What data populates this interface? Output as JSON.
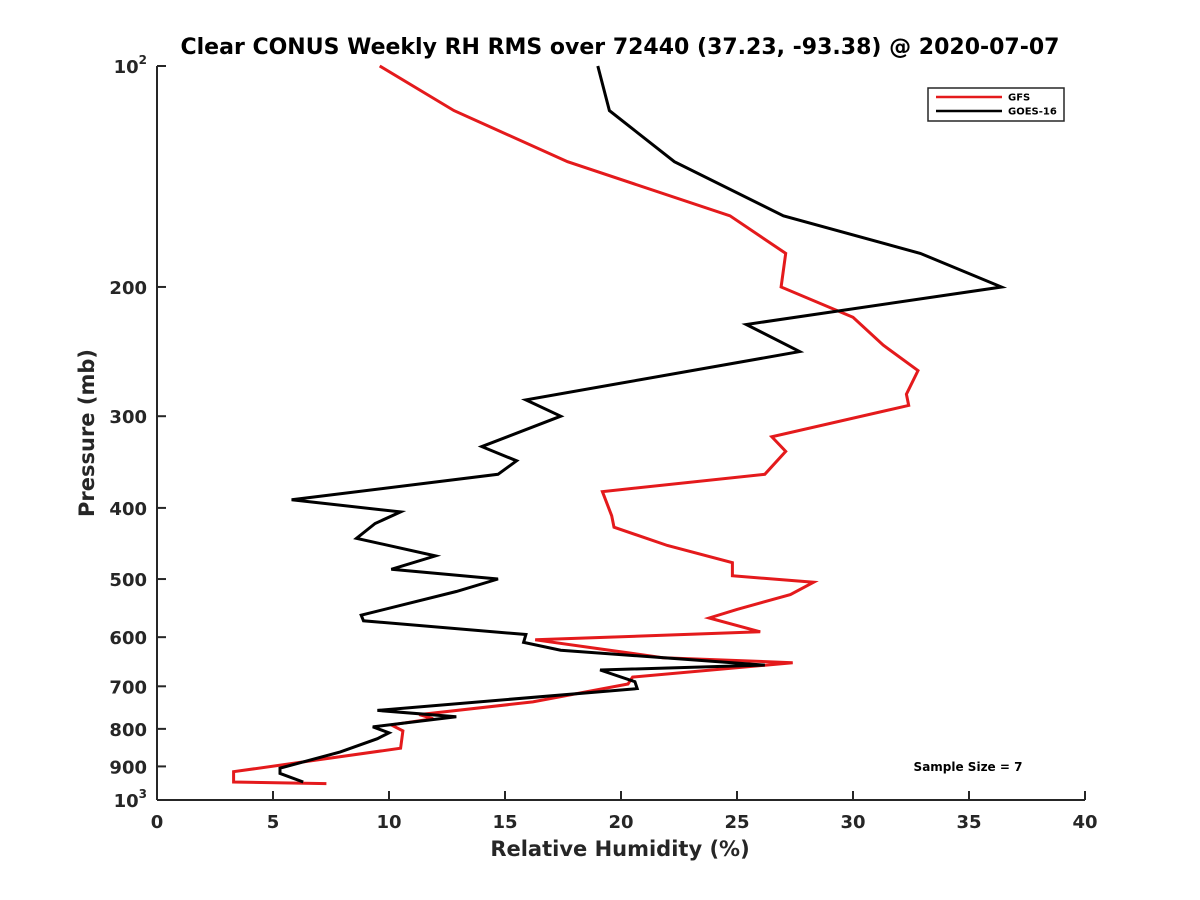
{
  "chart_data": {
    "type": "line",
    "title": "Clear CONUS Weekly RH RMS over 72440 (37.23, -93.38) @ 2020-07-07",
    "xlabel": "Relative Humidity (%)",
    "ylabel": "Pressure (mb)",
    "xlim": [
      0,
      40
    ],
    "ylim": [
      100,
      1000
    ],
    "yscale": "log",
    "y_reversed": true,
    "grid": false,
    "legend_position": "top-right",
    "x_ticks": [
      0,
      5,
      10,
      15,
      20,
      25,
      30,
      35,
      40
    ],
    "x_tick_labels": [
      "0",
      "5",
      "10",
      "15",
      "20",
      "25",
      "30",
      "35",
      "40"
    ],
    "y_ticks": [
      100,
      200,
      300,
      400,
      500,
      600,
      700,
      800,
      900,
      1000
    ],
    "y_tick_labels": [
      {
        "base": "10",
        "sup": "2"
      },
      {
        "base": "200",
        "sup": ""
      },
      {
        "base": "300",
        "sup": ""
      },
      {
        "base": "400",
        "sup": ""
      },
      {
        "base": "500",
        "sup": ""
      },
      {
        "base": "600",
        "sup": ""
      },
      {
        "base": "700",
        "sup": ""
      },
      {
        "base": "800",
        "sup": ""
      },
      {
        "base": "900",
        "sup": ""
      },
      {
        "base": "10",
        "sup": "3"
      }
    ],
    "annotation": "Sample Size = 7",
    "series": [
      {
        "name": "GFS",
        "color": "#e41a1c",
        "points": [
          [
            9.6,
            100
          ],
          [
            12.8,
            115
          ],
          [
            17.7,
            135
          ],
          [
            24.7,
            160
          ],
          [
            27.1,
            180
          ],
          [
            26.9,
            200
          ],
          [
            30.0,
            220
          ],
          [
            31.3,
            240
          ],
          [
            32.8,
            260
          ],
          [
            32.3,
            280
          ],
          [
            32.4,
            290
          ],
          [
            26.5,
            320
          ],
          [
            27.1,
            335
          ],
          [
            26.2,
            360
          ],
          [
            19.2,
            380
          ],
          [
            19.6,
            410
          ],
          [
            19.7,
            425
          ],
          [
            22.0,
            450
          ],
          [
            24.8,
            475
          ],
          [
            24.8,
            495
          ],
          [
            28.3,
            505
          ],
          [
            27.3,
            525
          ],
          [
            25.0,
            550
          ],
          [
            23.8,
            565
          ],
          [
            26.0,
            590
          ],
          [
            16.3,
            605
          ],
          [
            21.8,
            640
          ],
          [
            27.4,
            650
          ],
          [
            20.5,
            680
          ],
          [
            20.3,
            695
          ],
          [
            16.2,
            735
          ],
          [
            11.3,
            765
          ],
          [
            11.9,
            775
          ],
          [
            10.1,
            790
          ],
          [
            10.6,
            805
          ],
          [
            10.5,
            850
          ],
          [
            3.3,
            915
          ],
          [
            3.3,
            945
          ],
          [
            7.3,
            950
          ]
        ]
      },
      {
        "name": "GOES-16",
        "color": "#000000",
        "points": [
          [
            19.0,
            100
          ],
          [
            19.5,
            115
          ],
          [
            22.3,
            135
          ],
          [
            27.0,
            160
          ],
          [
            32.9,
            180
          ],
          [
            36.4,
            200
          ],
          [
            25.4,
            225
          ],
          [
            27.7,
            245
          ],
          [
            15.9,
            285
          ],
          [
            17.4,
            300
          ],
          [
            14.0,
            330
          ],
          [
            15.5,
            345
          ],
          [
            14.7,
            360
          ],
          [
            5.8,
            390
          ],
          [
            10.5,
            405
          ],
          [
            9.4,
            420
          ],
          [
            8.6,
            440
          ],
          [
            12.0,
            465
          ],
          [
            10.1,
            485
          ],
          [
            14.7,
            500
          ],
          [
            12.9,
            520
          ],
          [
            8.8,
            560
          ],
          [
            8.9,
            570
          ],
          [
            15.9,
            595
          ],
          [
            15.8,
            610
          ],
          [
            17.4,
            625
          ],
          [
            26.2,
            655
          ],
          [
            19.1,
            665
          ],
          [
            20.6,
            690
          ],
          [
            20.7,
            705
          ],
          [
            9.5,
            755
          ],
          [
            12.9,
            770
          ],
          [
            9.3,
            795
          ],
          [
            10.0,
            810
          ],
          [
            9.5,
            825
          ],
          [
            7.9,
            860
          ],
          [
            5.3,
            905
          ],
          [
            5.3,
            920
          ],
          [
            6.3,
            945
          ]
        ]
      }
    ]
  }
}
